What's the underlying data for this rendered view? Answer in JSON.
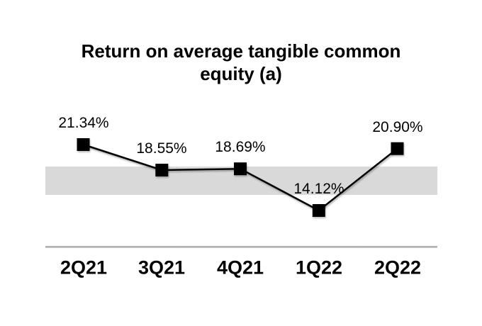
{
  "chart_data": {
    "type": "line",
    "title": "Return on average tangible common equity (a)",
    "categories": [
      "2Q21",
      "3Q21",
      "4Q21",
      "1Q22",
      "2Q22"
    ],
    "series": [
      {
        "name": "Return on average tangible common equity",
        "values": [
          21.34,
          18.55,
          18.69,
          14.12,
          20.9
        ],
        "labels": [
          "21.34%",
          "18.55%",
          "18.69%",
          "14.12%",
          "20.90%"
        ],
        "line_color": "#000000",
        "marker_color": "#000000",
        "marker": "square"
      }
    ],
    "reference_band": {
      "y_range": [
        15.8,
        18.9
      ],
      "color": "#d9d9d9"
    },
    "axis": {
      "x_line_color": "#a6a6a6"
    },
    "ylim": [
      10,
      25
    ],
    "grid": false,
    "legend": "none",
    "label_position": "above"
  }
}
